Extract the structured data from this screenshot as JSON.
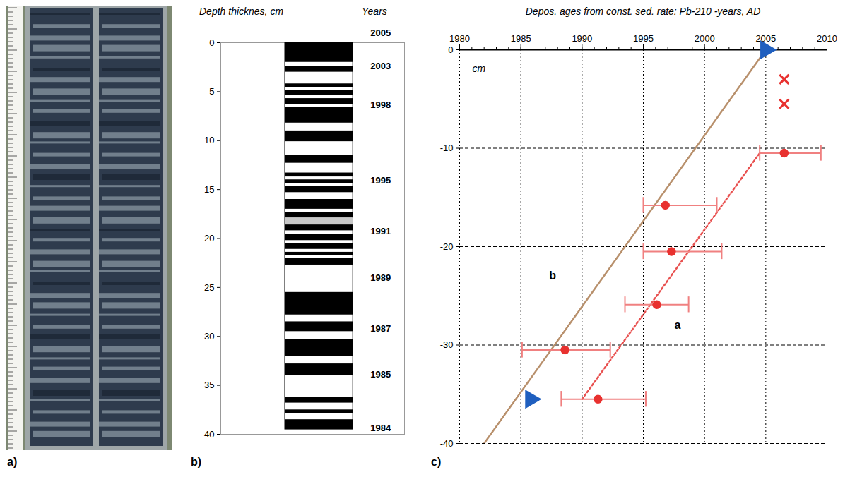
{
  "chart_data": [
    {
      "type": "photo",
      "label": "a)"
    },
    {
      "type": "core_log",
      "label": "b)",
      "y_label": "Depth thicknes, cm",
      "years_label": "Years",
      "ylim": [
        0,
        40
      ],
      "yticks": [
        0,
        5,
        10,
        15,
        20,
        25,
        30,
        35,
        40
      ],
      "core_extent": [
        0,
        39.5
      ],
      "black_layers": [
        [
          0,
          2.0
        ],
        [
          2.4,
          3.0
        ],
        [
          4.2,
          4.6
        ],
        [
          4.9,
          5.4
        ],
        [
          5.7,
          6.3
        ],
        [
          6.6,
          8.2
        ],
        [
          9.0,
          10.1
        ],
        [
          11.5,
          12.3
        ],
        [
          13.3,
          13.7
        ],
        [
          14.0,
          14.4
        ],
        [
          14.7,
          15.3
        ],
        [
          16.0,
          17.0
        ],
        [
          17.3,
          17.9
        ],
        [
          18.6,
          19.2
        ],
        [
          19.6,
          20.2
        ],
        [
          20.5,
          21.1
        ],
        [
          21.4,
          21.7
        ],
        [
          22.0,
          22.7
        ],
        [
          25.5,
          27.8
        ],
        [
          28.5,
          29.5
        ],
        [
          30.3,
          32.0
        ],
        [
          32.8,
          34.0
        ],
        [
          36.2,
          36.8
        ],
        [
          37.5,
          37.9
        ],
        [
          38.5,
          39.5
        ]
      ],
      "grey_layers": [
        [
          17.9,
          18.6
        ]
      ],
      "year_marks": {
        "depth": [
          -1.0,
          2.4,
          6.4,
          14.1,
          19.3,
          24.0,
          29.2,
          33.9,
          39.4
        ],
        "years": [
          2005,
          2003,
          1998,
          1995,
          1991,
          1989,
          1987,
          1985,
          1984
        ]
      }
    },
    {
      "type": "scatter",
      "label": "c)",
      "title": "Depos. ages from const. sed. rate: Pb-210 -years, AD",
      "y_unit_label": "cm",
      "xlim": [
        1980,
        2010
      ],
      "xticks": [
        1980,
        1985,
        1990,
        1995,
        2000,
        2005,
        2010
      ],
      "ylim": [
        -40,
        0
      ],
      "yticks": [
        0,
        -10,
        -20,
        -30,
        -40
      ],
      "grid": true,
      "points": {
        "x": [
          2006.5,
          1996.8,
          1997.3,
          1996.1,
          1988.6,
          1991.3
        ],
        "y": [
          -10.5,
          -15.8,
          -20.5,
          -25.9,
          -30.5,
          -35.5
        ],
        "x_err_low": [
          2004.5,
          1995.0,
          1995.0,
          1993.5,
          1985.1,
          1988.3
        ],
        "x_err_high": [
          2009.5,
          2001.0,
          2001.4,
          1998.7,
          1992.3,
          1995.2
        ],
        "color": "#e8312f",
        "marker": "circle"
      },
      "crosses": {
        "x": [
          2006.5,
          2006.5
        ],
        "y": [
          -3.0,
          -5.5
        ],
        "color": "#e8312f",
        "marker": "times"
      },
      "lines": [
        {
          "label": "a",
          "x": [
            1990.0,
            2004.5
          ],
          "y": [
            -35.5,
            -10.5
          ],
          "color": "#e8504f",
          "line_style": "dotted",
          "label_x": 1997.8,
          "label_y": -28.0
        },
        {
          "label": "b",
          "x": [
            1982.0,
            2005.0
          ],
          "y": [
            -40.0,
            0.0
          ],
          "color": "#b8906c",
          "line_style": "solid",
          "label_x": 1987.6,
          "label_y": -23.0
        }
      ],
      "arrows": {
        "x": [
          2005.0,
          1985.8
        ],
        "y": [
          0.0,
          -35.5
        ],
        "color": "#1f5fbf",
        "marker": "triangle"
      }
    }
  ]
}
